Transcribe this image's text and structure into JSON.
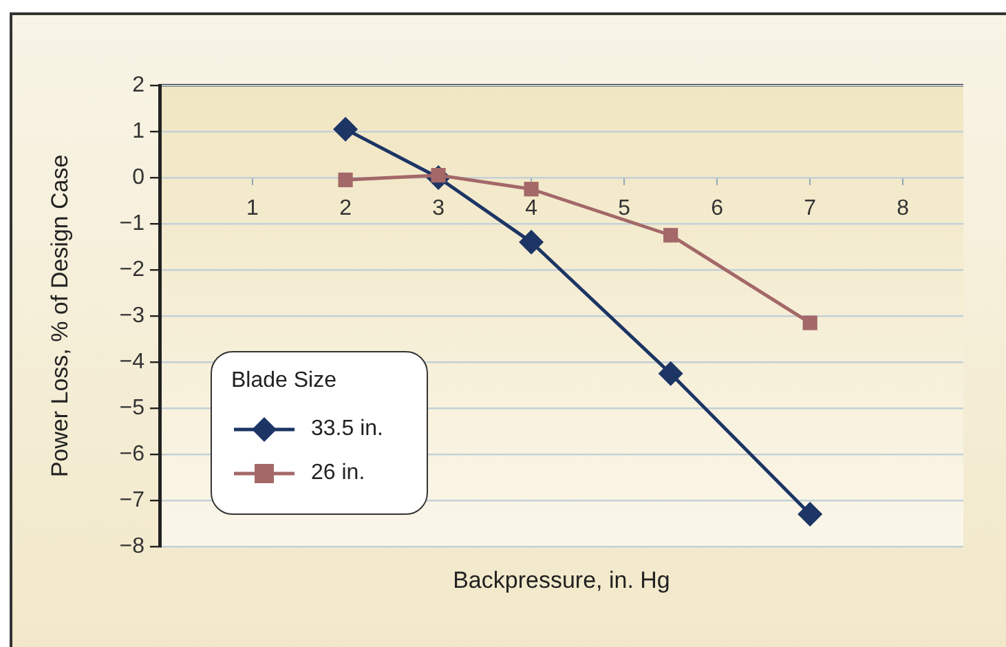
{
  "chart_data": {
    "type": "line",
    "xlabel": "Backpressure, in. Hg",
    "ylabel": "Power Loss, % of Design Case",
    "legend_title": "Blade Size",
    "x": [
      2,
      3,
      4,
      5.5,
      7
    ],
    "series": [
      {
        "name": "33.5 in.",
        "color": "#1c3564",
        "marker": "diamond",
        "values": [
          1.05,
          0,
          -1.4,
          -4.25,
          -7.3
        ]
      },
      {
        "name": "26 in.",
        "color": "#a46868",
        "marker": "square",
        "values": [
          -0.05,
          0.05,
          -0.25,
          -1.25,
          -3.15
        ]
      }
    ],
    "xlim": [
      0,
      8.65
    ],
    "xticks": [
      1,
      2,
      3,
      4,
      5,
      6,
      7,
      8
    ],
    "ylim": [
      -8,
      2
    ],
    "yticks": [
      2,
      1,
      0,
      -1,
      -2,
      -3,
      -4,
      -5,
      -6,
      -7,
      -8
    ],
    "grid": "y",
    "legend": "bottom left",
    "line_style": "solid"
  }
}
